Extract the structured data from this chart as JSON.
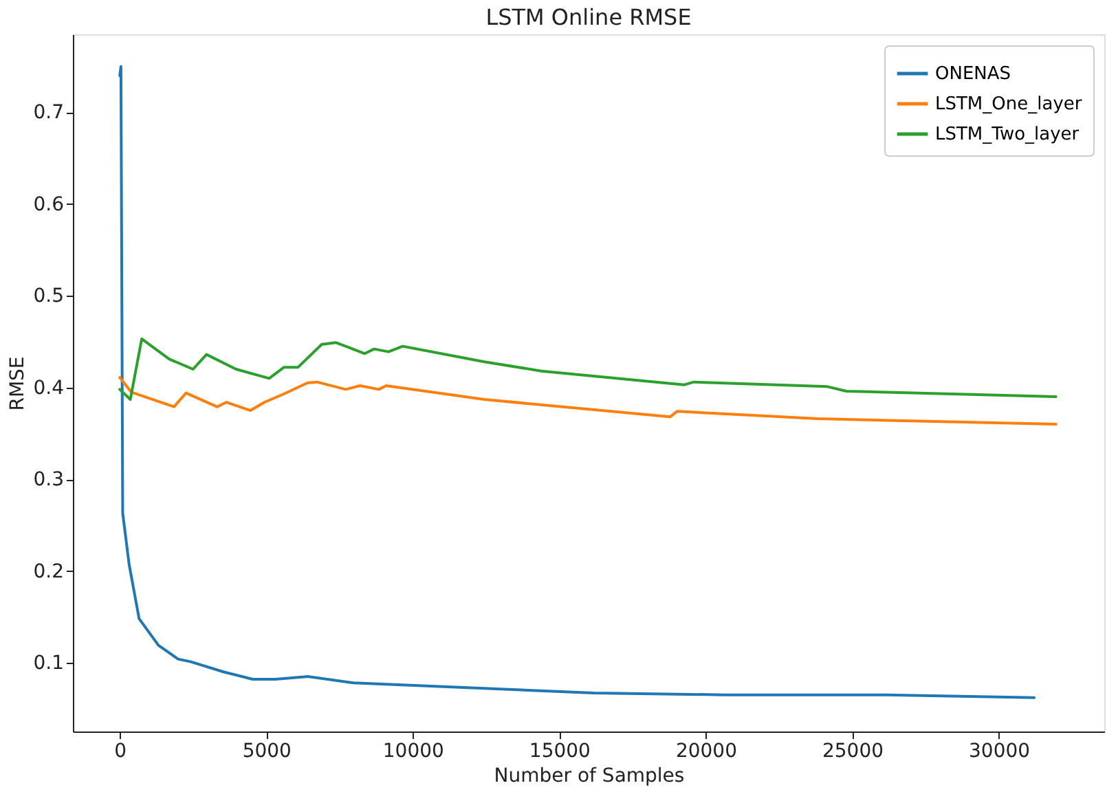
{
  "chart_data": {
    "type": "line",
    "title": "LSTM Online RMSE",
    "xlabel": "Number of Samples",
    "ylabel": "RMSE",
    "xlim": [
      -1600,
      33600
    ],
    "ylim": [
      0.025,
      0.785
    ],
    "xticks": [
      0,
      5000,
      10000,
      15000,
      20000,
      25000,
      30000
    ],
    "yticks": [
      0.1,
      0.2,
      0.3,
      0.4,
      0.5,
      0.6,
      0.7
    ],
    "grid": false,
    "legend": "top right",
    "marker": "none",
    "line_style": "solid",
    "series": [
      {
        "name": "ONENAS",
        "color": "#1f77b4",
        "x": [
          0,
          40,
          100,
          320,
          660,
          1320,
          1990,
          2430,
          3540,
          4540,
          5310,
          6420,
          7980,
          11740,
          16180,
          20610,
          26160,
          31210
        ],
        "values": [
          0.74,
          0.75,
          0.263,
          0.207,
          0.148,
          0.119,
          0.104,
          0.101,
          0.09,
          0.082,
          0.082,
          0.085,
          0.078,
          0.073,
          0.067,
          0.065,
          0.065,
          0.062
        ]
      },
      {
        "name": "LSTM_One_layer",
        "color": "#ff7f0e",
        "x": [
          0,
          390,
          1850,
          2260,
          3320,
          3640,
          4460,
          4940,
          5600,
          6400,
          6730,
          7710,
          8200,
          8840,
          9090,
          12440,
          18780,
          19020,
          23820,
          31950
        ],
        "values": [
          0.411,
          0.395,
          0.379,
          0.394,
          0.379,
          0.384,
          0.375,
          0.384,
          0.393,
          0.405,
          0.406,
          0.398,
          0.402,
          0.398,
          0.402,
          0.387,
          0.368,
          0.374,
          0.366,
          0.36
        ]
      },
      {
        "name": "LSTM_Two_layer",
        "color": "#2ca02c",
        "x": [
          0,
          360,
          750,
          1690,
          2500,
          2960,
          3970,
          5100,
          5600,
          6080,
          6890,
          7380,
          8360,
          8680,
          9170,
          9660,
          12440,
          14390,
          19270,
          19590,
          24150,
          24800,
          31950
        ],
        "values": [
          0.398,
          0.387,
          0.453,
          0.431,
          0.42,
          0.436,
          0.42,
          0.41,
          0.422,
          0.422,
          0.447,
          0.449,
          0.437,
          0.442,
          0.439,
          0.445,
          0.428,
          0.418,
          0.403,
          0.406,
          0.401,
          0.396,
          0.39
        ]
      }
    ]
  }
}
